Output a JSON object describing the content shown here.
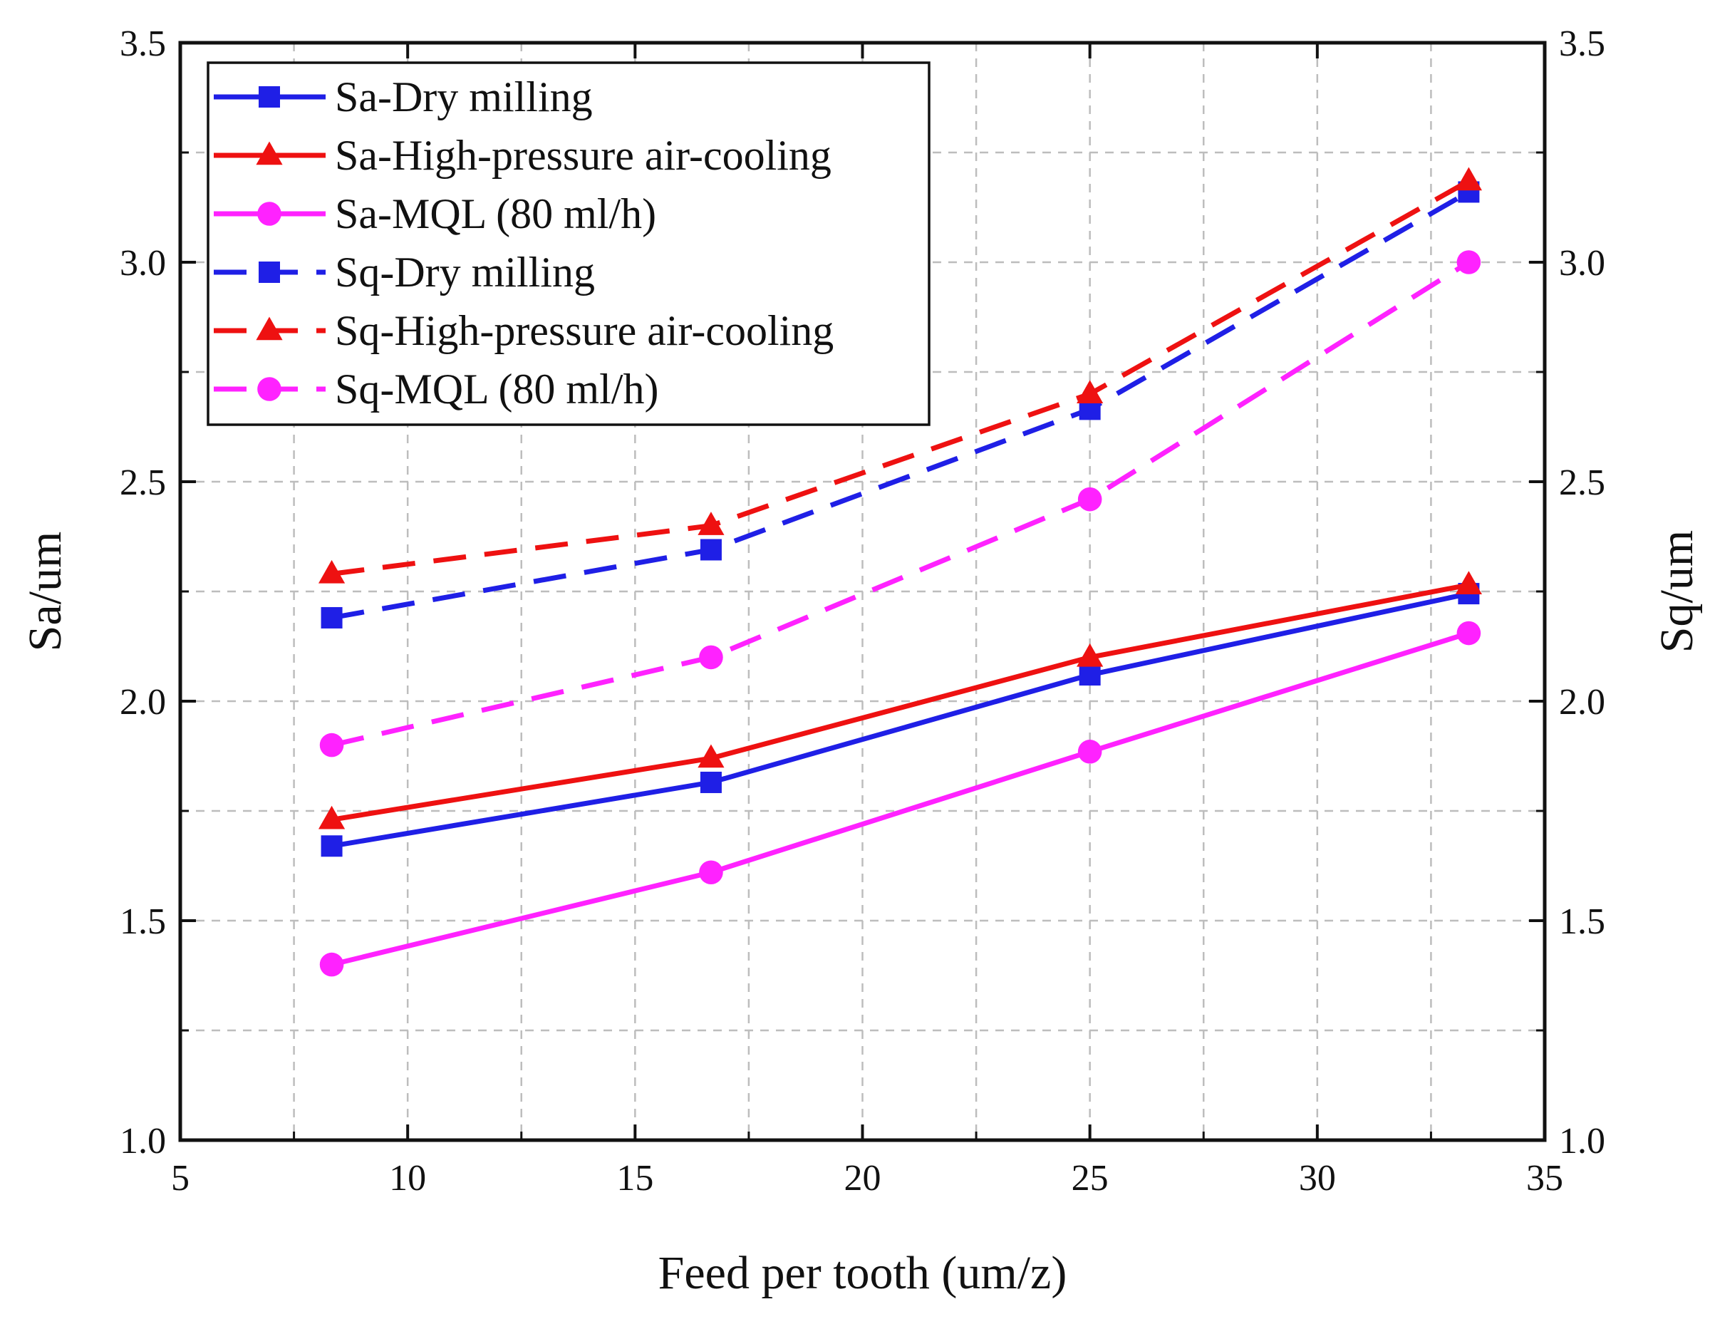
{
  "chart_data": {
    "type": "line",
    "title": "",
    "xlabel": "Feed per tooth (um/z)",
    "ylabel_left": "Sa/um",
    "ylabel_right": "Sq/um",
    "xlim": [
      5,
      35
    ],
    "ylim": [
      1.0,
      3.5
    ],
    "x_ticks": [
      "5",
      "10",
      "15",
      "20",
      "25",
      "30",
      "35"
    ],
    "y_ticks": [
      "1.0",
      "1.5",
      "2.0",
      "2.5",
      "3.0",
      "3.5"
    ],
    "grid": true,
    "legend_position": "top-left",
    "x": [
      8.33,
      16.67,
      25.0,
      33.33
    ],
    "series": [
      {
        "name": "Sa-Dry milling",
        "values": [
          1.67,
          1.815,
          2.06,
          2.245
        ],
        "color": "#1f1fe6",
        "line": "solid",
        "marker": "square",
        "axis": "left"
      },
      {
        "name": "Sa-High-pressure air-cooling",
        "values": [
          1.73,
          1.87,
          2.1,
          2.265
        ],
        "color": "#ee1111",
        "line": "solid",
        "marker": "triangle",
        "axis": "left"
      },
      {
        "name": "Sa-MQL (80 ml/h)",
        "values": [
          1.4,
          1.61,
          1.885,
          2.155
        ],
        "color": "#ff22ff",
        "line": "solid",
        "marker": "circle",
        "axis": "left"
      },
      {
        "name": "Sq-Dry milling",
        "values": [
          2.19,
          2.345,
          2.665,
          3.16
        ],
        "color": "#1f1fe6",
        "line": "dashed",
        "marker": "square",
        "axis": "right"
      },
      {
        "name": "Sq-High-pressure air-cooling",
        "values": [
          2.29,
          2.4,
          2.7,
          3.185
        ],
        "color": "#ee1111",
        "line": "dashed",
        "marker": "triangle",
        "axis": "right"
      },
      {
        "name": "Sq-MQL (80 ml/h)",
        "values": [
          1.9,
          2.1,
          2.46,
          3.0
        ],
        "color": "#ff22ff",
        "line": "dashed",
        "marker": "circle",
        "axis": "right"
      }
    ]
  }
}
